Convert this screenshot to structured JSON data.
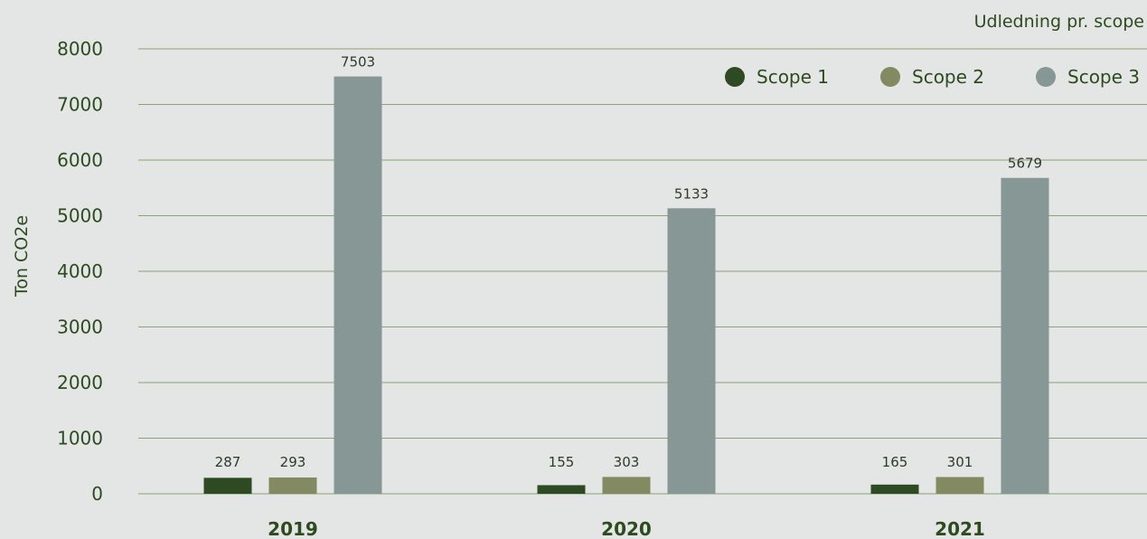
{
  "chart_data": {
    "type": "bar",
    "title": "Udledning pr. scope",
    "ylabel": "Ton CO2e",
    "xlabel": "",
    "categories": [
      "2019",
      "2020",
      "2021"
    ],
    "ylim": [
      0,
      8000
    ],
    "yticks": [
      0,
      1000,
      2000,
      3000,
      4000,
      5000,
      6000,
      7000,
      8000
    ],
    "series": [
      {
        "name": "Scope 1",
        "color": "#2e4a22",
        "values": [
          287,
          155,
          165
        ]
      },
      {
        "name": "Scope 2",
        "color": "#838a62",
        "values": [
          293,
          303,
          301
        ]
      },
      {
        "name": "Scope 3",
        "color": "#869796",
        "values": [
          7503,
          5133,
          5679
        ]
      }
    ],
    "grid": true,
    "legend_position": "top-right"
  }
}
